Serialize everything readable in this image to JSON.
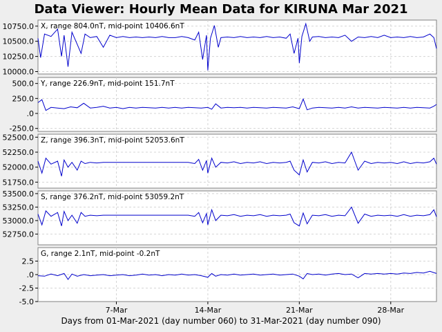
{
  "title": "Data Viewer:  Hourly Mean Data for KIRUNA Mar 2021",
  "xlabel": "Days from 01-Mar-2021 (day number 060) to 31-Mar-2021 (day number 090)",
  "chart_data": {
    "type": "line",
    "x_unit": "day of month (Mar 2021)",
    "xlim": [
      1,
      31.5
    ],
    "x_ticks": [
      {
        "day": 7,
        "label": "7-Mar"
      },
      {
        "day": 14,
        "label": "14-Mar"
      },
      {
        "day": 21,
        "label": "21-Mar"
      },
      {
        "day": 28,
        "label": "28-Mar"
      }
    ],
    "grid": true,
    "line_color": "#0000cc",
    "panels": [
      {
        "label": "X, range 804.0nT, mid-point 10406.6nT",
        "ylim": [
          9960,
          10850
        ],
        "y_ticks": [
          "10750.0",
          "10500.0",
          "10250.0",
          "10000.0"
        ],
        "y_tick_values": [
          10750,
          10500,
          10250,
          10000
        ],
        "series": {
          "x": [
            1,
            1.2,
            1.5,
            2,
            2.5,
            2.8,
            3,
            3.3,
            3.6,
            4,
            4.3,
            4.6,
            5,
            5.5,
            6,
            6.5,
            7,
            7.5,
            8,
            8.5,
            9,
            9.5,
            10,
            10.5,
            11,
            11.5,
            12,
            12.5,
            13,
            13.3,
            13.6,
            13.9,
            14,
            14.2,
            14.5,
            14.8,
            15,
            15.5,
            16,
            16.5,
            17,
            17.5,
            18,
            18.5,
            19,
            19.5,
            20,
            20.3,
            20.6,
            20.9,
            21,
            21.2,
            21.5,
            21.8,
            22,
            22.5,
            23,
            23.5,
            24,
            24.5,
            25,
            25.5,
            26,
            26.5,
            27,
            27.5,
            28,
            28.5,
            29,
            29.5,
            30,
            30.5,
            31,
            31.3,
            31.5
          ],
          "y": [
            10550,
            10230,
            10620,
            10580,
            10700,
            10250,
            10600,
            10080,
            10650,
            10450,
            10300,
            10620,
            10560,
            10580,
            10400,
            10600,
            10560,
            10580,
            10560,
            10570,
            10560,
            10570,
            10560,
            10580,
            10560,
            10560,
            10580,
            10560,
            10520,
            10650,
            10200,
            10600,
            10020,
            10550,
            10760,
            10400,
            10560,
            10570,
            10560,
            10580,
            10560,
            10570,
            10560,
            10580,
            10560,
            10570,
            10550,
            10620,
            10300,
            10550,
            10140,
            10580,
            10790,
            10500,
            10570,
            10580,
            10560,
            10570,
            10560,
            10600,
            10500,
            10570,
            10560,
            10580,
            10560,
            10600,
            10560,
            10570,
            10560,
            10580,
            10560,
            10570,
            10620,
            10560,
            10380
          ]
        }
      },
      {
        "label": "Y, range 226.9nT, mid-point 151.7nT",
        "ylim": [
          -300,
          600
        ],
        "y_ticks": [
          "500.0",
          "250.0",
          ".0",
          "-250.0"
        ],
        "y_tick_values": [
          500,
          250,
          0,
          -250
        ],
        "series": {
          "x": [
            1,
            1.3,
            1.6,
            2,
            2.5,
            3,
            3.5,
            4,
            4.5,
            5,
            5.5,
            6,
            6.5,
            7,
            7.5,
            8,
            8.5,
            9,
            9.5,
            10,
            10.5,
            11,
            11.5,
            12,
            12.5,
            13,
            13.5,
            14,
            14.3,
            14.6,
            15,
            15.5,
            16,
            16.5,
            17,
            17.5,
            18,
            18.5,
            19,
            19.5,
            20,
            20.5,
            21,
            21.3,
            21.6,
            22,
            22.5,
            23,
            23.5,
            24,
            24.5,
            25,
            25.5,
            26,
            26.5,
            27,
            27.5,
            28,
            28.5,
            29,
            29.5,
            30,
            30.5,
            31,
            31.3,
            31.5
          ],
          "y": [
            180,
            230,
            50,
            100,
            90,
            80,
            110,
            95,
            170,
            90,
            100,
            120,
            90,
            100,
            80,
            100,
            90,
            100,
            95,
            90,
            100,
            90,
            100,
            90,
            100,
            95,
            90,
            100,
            70,
            160,
            90,
            100,
            95,
            100,
            90,
            100,
            95,
            90,
            100,
            95,
            90,
            110,
            80,
            240,
            60,
            90,
            100,
            95,
            90,
            100,
            90,
            110,
            90,
            100,
            95,
            90,
            100,
            95,
            90,
            100,
            90,
            100,
            95,
            90,
            120,
            150
          ]
        }
      },
      {
        "label": "Z, range 396.3nT, mid-point 52053.6nT",
        "ylim": [
          51650,
          52550
        ],
        "y_ticks": [
          "52500.0",
          "52250.0",
          "52000.0",
          "51750.0"
        ],
        "y_tick_values": [
          52500,
          52250,
          52000,
          51750
        ],
        "series": {
          "x": [
            1,
            1.3,
            1.6,
            2,
            2.5,
            2.8,
            3,
            3.3,
            3.6,
            4,
            4.3,
            4.6,
            5,
            5.5,
            6,
            6.5,
            7,
            7.5,
            8,
            8.5,
            9,
            9.5,
            10,
            10.5,
            11,
            11.5,
            12,
            12.5,
            13,
            13.3,
            13.6,
            13.9,
            14,
            14.3,
            14.6,
            15,
            15.5,
            16,
            16.5,
            17,
            17.5,
            18,
            18.5,
            19,
            19.5,
            20,
            20.3,
            20.6,
            21,
            21.3,
            21.6,
            22,
            22.5,
            23,
            23.5,
            24,
            24.5,
            25,
            25.5,
            26,
            26.5,
            27,
            27.5,
            28,
            28.5,
            29,
            29.5,
            30,
            30.5,
            31,
            31.3,
            31.5
          ],
          "y": [
            52100,
            51900,
            52150,
            52050,
            52100,
            51850,
            52120,
            52000,
            52080,
            51950,
            52100,
            52060,
            52080,
            52070,
            52080,
            52080,
            52080,
            52080,
            52080,
            52080,
            52080,
            52080,
            52080,
            52080,
            52080,
            52080,
            52080,
            52080,
            52060,
            52130,
            51950,
            52110,
            51900,
            52150,
            52000,
            52080,
            52070,
            52090,
            52060,
            52080,
            52070,
            52090,
            52060,
            52080,
            52070,
            52080,
            52100,
            51950,
            51870,
            52120,
            51920,
            52080,
            52070,
            52090,
            52060,
            52080,
            52070,
            52250,
            51950,
            52100,
            52060,
            52080,
            52070,
            52080,
            52060,
            52090,
            52060,
            52080,
            52070,
            52090,
            52150,
            52050
          ]
        }
      },
      {
        "label": "S, range 376.2nT, mid-point 53059.2nT",
        "ylim": [
          52550,
          53550
        ],
        "y_ticks": [
          "53500.0",
          "53250.0",
          "53000.0",
          "52750.0"
        ],
        "y_tick_values": [
          53500,
          53250,
          53000,
          52750
        ],
        "series": {
          "x": [
            1,
            1.3,
            1.6,
            2,
            2.5,
            2.8,
            3,
            3.3,
            3.6,
            4,
            4.3,
            4.6,
            5,
            5.5,
            6,
            6.5,
            7,
            7.5,
            8,
            8.5,
            9,
            9.5,
            10,
            10.5,
            11,
            11.5,
            12,
            12.5,
            13,
            13.3,
            13.6,
            13.9,
            14,
            14.3,
            14.6,
            15,
            15.5,
            16,
            16.5,
            17,
            17.5,
            18,
            18.5,
            19,
            19.5,
            20,
            20.3,
            20.6,
            21,
            21.3,
            21.6,
            22,
            22.5,
            23,
            23.5,
            24,
            24.5,
            25,
            25.5,
            26,
            26.5,
            27,
            27.5,
            28,
            28.5,
            29,
            29.5,
            30,
            30.5,
            31,
            31.3,
            31.5
          ],
          "y": [
            53120,
            52920,
            53180,
            53080,
            53150,
            52900,
            53170,
            53000,
            53100,
            52950,
            53150,
            53080,
            53100,
            53090,
            53100,
            53100,
            53100,
            53100,
            53100,
            53100,
            53100,
            53100,
            53100,
            53100,
            53100,
            53100,
            53100,
            53100,
            53080,
            53150,
            52960,
            53130,
            52920,
            53200,
            53000,
            53100,
            53090,
            53110,
            53080,
            53100,
            53090,
            53110,
            53080,
            53100,
            53090,
            53100,
            53120,
            52960,
            52900,
            53140,
            52940,
            53100,
            53090,
            53110,
            53080,
            53100,
            53090,
            53250,
            52950,
            53120,
            53080,
            53100,
            53090,
            53100,
            53080,
            53110,
            53080,
            53100,
            53090,
            53110,
            53200,
            53070
          ]
        }
      },
      {
        "label": "G, range 2.1nT, mid-point -0.2nT",
        "ylim": [
          -5,
          5
        ],
        "y_ticks": [
          "2.5",
          ".0",
          "-2.5",
          "-5.0"
        ],
        "y_tick_values": [
          2.5,
          0,
          -2.5,
          -5
        ],
        "series": {
          "x": [
            1,
            1.5,
            2,
            2.5,
            3,
            3.3,
            3.6,
            4,
            4.5,
            5,
            5.5,
            6,
            6.5,
            7,
            7.5,
            8,
            8.5,
            9,
            9.5,
            10,
            10.5,
            11,
            11.5,
            12,
            12.5,
            13,
            13.5,
            14,
            14.3,
            14.6,
            15,
            15.5,
            16,
            16.5,
            17,
            17.5,
            18,
            18.5,
            19,
            19.5,
            20,
            20.5,
            21,
            21.3,
            21.6,
            22,
            22.5,
            23,
            23.5,
            24,
            24.5,
            25,
            25.5,
            26,
            26.5,
            27,
            27.5,
            28,
            28.5,
            29,
            29.5,
            30,
            30.5,
            31,
            31.5
          ],
          "y": [
            -0.2,
            -0.3,
            0.1,
            -0.2,
            0.2,
            -0.9,
            0.1,
            -0.3,
            0.0,
            -0.2,
            -0.1,
            0.0,
            -0.2,
            -0.1,
            0.0,
            -0.2,
            -0.1,
            0.1,
            -0.1,
            0.0,
            -0.2,
            0.0,
            -0.1,
            0.1,
            -0.1,
            0.0,
            -0.2,
            -0.5,
            0.2,
            -0.3,
            0.0,
            -0.1,
            0.1,
            -0.1,
            0.0,
            0.1,
            -0.1,
            0.0,
            0.1,
            -0.1,
            0.0,
            0.1,
            -0.3,
            -0.8,
            0.2,
            0.0,
            0.1,
            -0.1,
            0.1,
            0.2,
            0.0,
            0.1,
            -0.6,
            0.2,
            0.1,
            0.2,
            0.1,
            0.2,
            0.1,
            0.3,
            0.2,
            0.4,
            0.3,
            0.6,
            0.2
          ]
        }
      }
    ]
  }
}
